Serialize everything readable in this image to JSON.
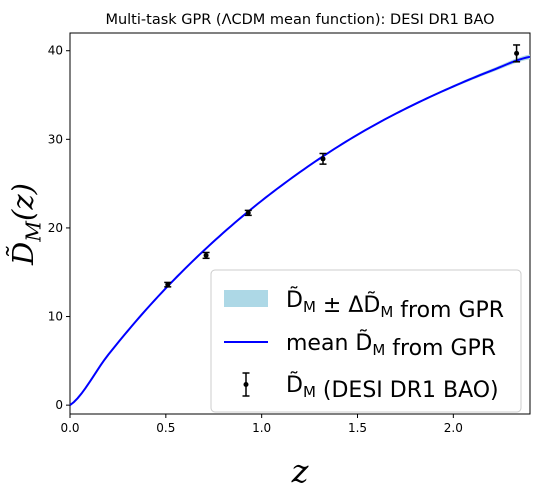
{
  "chart_data": {
    "type": "line",
    "title": "Multi-task GPR (ΛCDM mean function): DESI DR1 BAO",
    "xlabel": "z",
    "ylabel": "D̃_M(z)",
    "xlim": [
      0.0,
      2.4
    ],
    "ylim": [
      -1.0,
      42.0
    ],
    "xticks": [
      "0.0",
      "0.5",
      "1.0",
      "1.5",
      "2.0"
    ],
    "yticks": [
      "0",
      "10",
      "20",
      "30",
      "40"
    ],
    "grid": false,
    "legend_position": "lower-right",
    "series": [
      {
        "name": "D̃_M ± ΔD̃_M from GPR",
        "kind": "band",
        "color": "#add8e6",
        "x": [
          0.0,
          0.2,
          0.4,
          0.6,
          0.8,
          1.0,
          1.2,
          1.4,
          1.6,
          1.8,
          2.0,
          2.2,
          2.4
        ],
        "lower": [
          0.0,
          5.65,
          10.78,
          15.34,
          19.38,
          23.0,
          26.24,
          29.14,
          31.68,
          33.88,
          35.82,
          37.56,
          39.04
        ],
        "upper": [
          0.0,
          5.75,
          10.92,
          15.46,
          19.52,
          23.14,
          26.36,
          29.26,
          31.82,
          34.08,
          36.12,
          37.96,
          39.58
        ]
      },
      {
        "name": "mean D̃_M from GPR",
        "kind": "line",
        "color": "#0000ff",
        "x": [
          0.0,
          0.2,
          0.4,
          0.6,
          0.8,
          1.0,
          1.2,
          1.4,
          1.6,
          1.8,
          2.0,
          2.2,
          2.4
        ],
        "y": [
          0.0,
          5.7,
          10.85,
          15.4,
          19.45,
          23.07,
          26.3,
          29.2,
          31.75,
          33.98,
          35.97,
          37.76,
          39.31
        ]
      },
      {
        "name": "D̃_M (DESI DR1 BAO)",
        "kind": "errorbar",
        "color": "#000000",
        "x": [
          0.51,
          0.71,
          0.93,
          1.32,
          2.33
        ],
        "y": [
          13.6,
          16.9,
          21.7,
          27.8,
          39.7
        ],
        "yerr": [
          0.25,
          0.33,
          0.28,
          0.6,
          0.95
        ]
      }
    ]
  }
}
